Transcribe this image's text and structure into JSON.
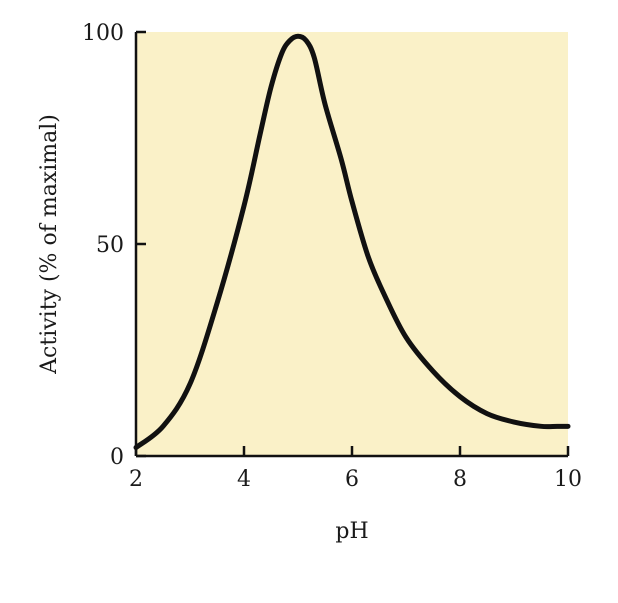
{
  "chart_data": {
    "type": "line",
    "title": "",
    "xlabel": "pH",
    "ylabel": "Activity (% of maximal)",
    "xlim": [
      2,
      10
    ],
    "ylim": [
      0,
      100
    ],
    "xticks": [
      2,
      4,
      6,
      8,
      10
    ],
    "yticks": [
      0,
      50,
      100
    ],
    "grid": false,
    "background_color": "#faf1c8",
    "line_color": "#111111",
    "series": [
      {
        "x": [
          2.0,
          2.5,
          3.0,
          3.5,
          4.0,
          4.3,
          4.5,
          4.7,
          4.85,
          5.0,
          5.15,
          5.3,
          5.5,
          5.8,
          6.0,
          6.3,
          6.6,
          7.0,
          7.5,
          8.0,
          8.5,
          9.0,
          9.5,
          9.8,
          10.0
        ],
        "y": [
          2,
          7,
          17,
          36,
          59,
          76,
          87,
          95,
          98,
          99,
          98,
          94,
          83,
          70,
          60,
          47,
          38,
          28,
          20,
          14,
          10,
          8,
          7,
          7,
          7
        ]
      }
    ]
  }
}
